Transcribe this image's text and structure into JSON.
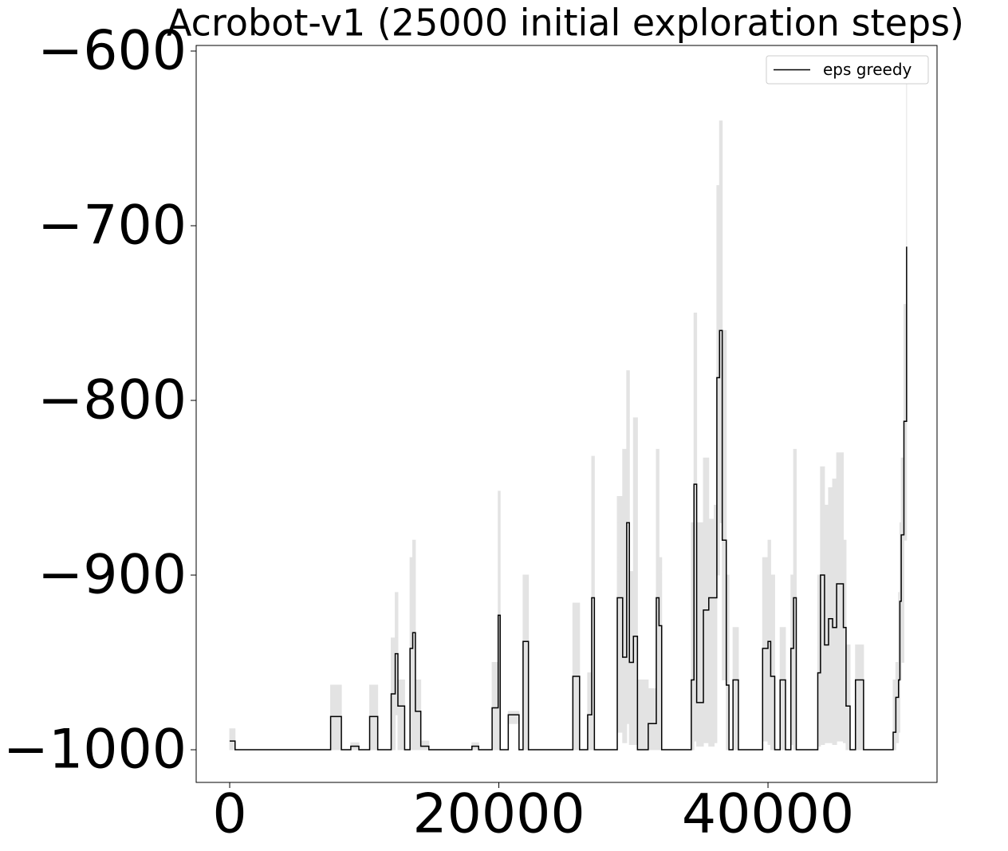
{
  "chart_data": {
    "type": "line",
    "step": "post",
    "title": "Acrobot-v1 (25000 initial exploration steps)",
    "x": [
      0,
      400,
      7500,
      8300,
      9000,
      9600,
      10400,
      11000,
      12000,
      12300,
      12500,
      13000,
      13400,
      13600,
      13800,
      14200,
      14800,
      18000,
      18500,
      19500,
      19950,
      20100,
      20700,
      21500,
      21800,
      22200,
      25500,
      26000,
      26600,
      26900,
      27100,
      28800,
      29200,
      29500,
      29700,
      30000,
      30300,
      31100,
      31700,
      31900,
      32100,
      34300,
      34500,
      34700,
      35200,
      35600,
      36000,
      36200,
      36400,
      36600,
      36900,
      37100,
      37400,
      37800,
      39600,
      40000,
      40200,
      40500,
      40900,
      41300,
      41700,
      41900,
      42100,
      43700,
      43900,
      44200,
      44500,
      44800,
      45100,
      45600,
      45800,
      46100,
      46500,
      47100,
      49300,
      49500,
      49700,
      49800,
      49900,
      50100,
      50300
    ],
    "series": [
      {
        "name": "eps greedy",
        "color": "#000000",
        "values": [
          -995,
          -1000,
          -981,
          -1000,
          -998,
          -1000,
          -981,
          -1000,
          -968,
          -945,
          -975,
          -1000,
          -942,
          -933,
          -978,
          -998,
          -1000,
          -998,
          -1000,
          -976,
          -923,
          -1000,
          -980,
          -1000,
          -938,
          -1000,
          -958,
          -1000,
          -980,
          -913,
          -1000,
          -913,
          -947,
          -870,
          -950,
          -935,
          -1000,
          -985,
          -913,
          -929,
          -1000,
          -960,
          -848,
          -973,
          -920,
          -913,
          -913,
          -787,
          -760,
          -880,
          -963,
          -1000,
          -960,
          -1000,
          -942,
          -938,
          -958,
          -1000,
          -960,
          -1000,
          -942,
          -913,
          -1000,
          -956,
          -900,
          -940,
          -925,
          -930,
          -905,
          -930,
          -975,
          -1000,
          -960,
          -1000,
          -990,
          -970,
          -960,
          -915,
          -877,
          -812,
          -712
        ]
      }
    ],
    "band": {
      "color": "#e3e3e3",
      "upper": [
        -988,
        -1000,
        -963,
        -1000,
        -996,
        -1000,
        -963,
        -1000,
        -936,
        -910,
        -960,
        -1000,
        -890,
        -880,
        -960,
        -995,
        -1000,
        -996,
        -1000,
        -950,
        -852,
        -1000,
        -978,
        -1000,
        -900,
        -1000,
        -916,
        -1000,
        -956,
        -832,
        -1000,
        -855,
        -828,
        -783,
        -898,
        -810,
        -960,
        -965,
        -828,
        -890,
        -1000,
        -870,
        -750,
        -870,
        -833,
        -868,
        -860,
        -677,
        -640,
        -760,
        -900,
        -1000,
        -930,
        -1000,
        -890,
        -880,
        -900,
        -1000,
        -930,
        -1000,
        -900,
        -828,
        -1000,
        -900,
        -838,
        -860,
        -850,
        -845,
        -830,
        -880,
        -940,
        -1000,
        -940,
        -1000,
        -960,
        -950,
        -910,
        -870,
        -833,
        -745,
        -612
      ],
      "lower": [
        -1000,
        -1000,
        -1000,
        -1000,
        -1000,
        -1000,
        -1000,
        -1000,
        -1000,
        -980,
        -1000,
        -1000,
        -1000,
        -1000,
        -1000,
        -1000,
        -1000,
        -1000,
        -1000,
        -1000,
        -1000,
        -1000,
        -985,
        -1000,
        -1000,
        -1000,
        -1000,
        -1000,
        -1000,
        -1000,
        -1000,
        -990,
        -996,
        -985,
        -997,
        -997,
        -1000,
        -1000,
        -1000,
        -1000,
        -1000,
        -1000,
        -995,
        -998,
        -996,
        -998,
        -996,
        -900,
        -870,
        -960,
        -1000,
        -1000,
        -1000,
        -1000,
        -995,
        -997,
        -1000,
        -1000,
        -1000,
        -1000,
        -997,
        -1000,
        -1000,
        -998,
        -997,
        -996,
        -996,
        -997,
        -995,
        -996,
        -1000,
        -1000,
        -1000,
        -1000,
        -1000,
        -996,
        -990,
        -960,
        -950,
        -880,
        -860
      ]
    },
    "xlim": [
      -2490,
      52560
    ],
    "ylim": [
      -1018.7,
      -596.8
    ],
    "xticks": [
      0,
      20000,
      40000
    ],
    "yticks": [
      {
        "value": -600,
        "label": "−600"
      },
      {
        "value": -700,
        "label": "−700"
      },
      {
        "value": -800,
        "label": "−800"
      },
      {
        "value": -900,
        "label": "−900"
      },
      {
        "value": -1000,
        "label": "−1000"
      }
    ],
    "legend": "upper right"
  }
}
